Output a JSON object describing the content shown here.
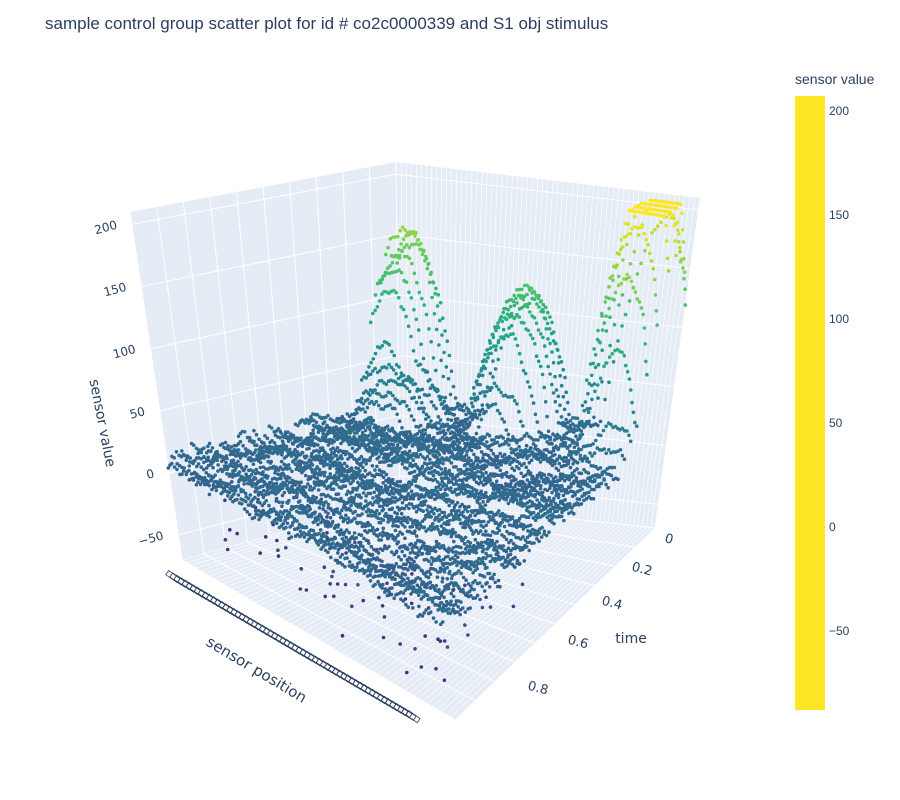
{
  "chart_data": {
    "type": "scatter",
    "title": "sample control group scatter plot for id # co2c0000339 and S1 obj stimulus",
    "axes": {
      "x": {
        "label": "time",
        "range": [
          0,
          1
        ],
        "ticks": [
          "0",
          "0.2",
          "0.4",
          "0.6",
          "0.8"
        ]
      },
      "y": {
        "label": "sensor position",
        "categorical": true
      },
      "z": {
        "label": "sensor value",
        "range": [
          -70,
          210
        ],
        "ticks": [
          "−50",
          "0",
          "50",
          "100",
          "150",
          "200"
        ]
      }
    },
    "colorbar": {
      "title": "sensor value",
      "colorscale": "viridis",
      "range": [
        -88,
        207
      ],
      "ticks": [
        {
          "label": "200",
          "value": 200
        },
        {
          "label": "150",
          "value": 150
        },
        {
          "label": "100",
          "value": 100
        },
        {
          "label": "50",
          "value": 50
        },
        {
          "label": "0",
          "value": 0
        },
        {
          "label": "−50",
          "value": -50
        }
      ]
    },
    "description_values": {
      "baseline_level": 10,
      "typical_min": -70,
      "peak_max": 207,
      "secondary_peaks": [
        140,
        120,
        100,
        90
      ]
    },
    "grid": true,
    "colors": {
      "scene_bg": "#e5ecf6",
      "grid": "#ffffff",
      "text": "#2a3f5f"
    }
  }
}
